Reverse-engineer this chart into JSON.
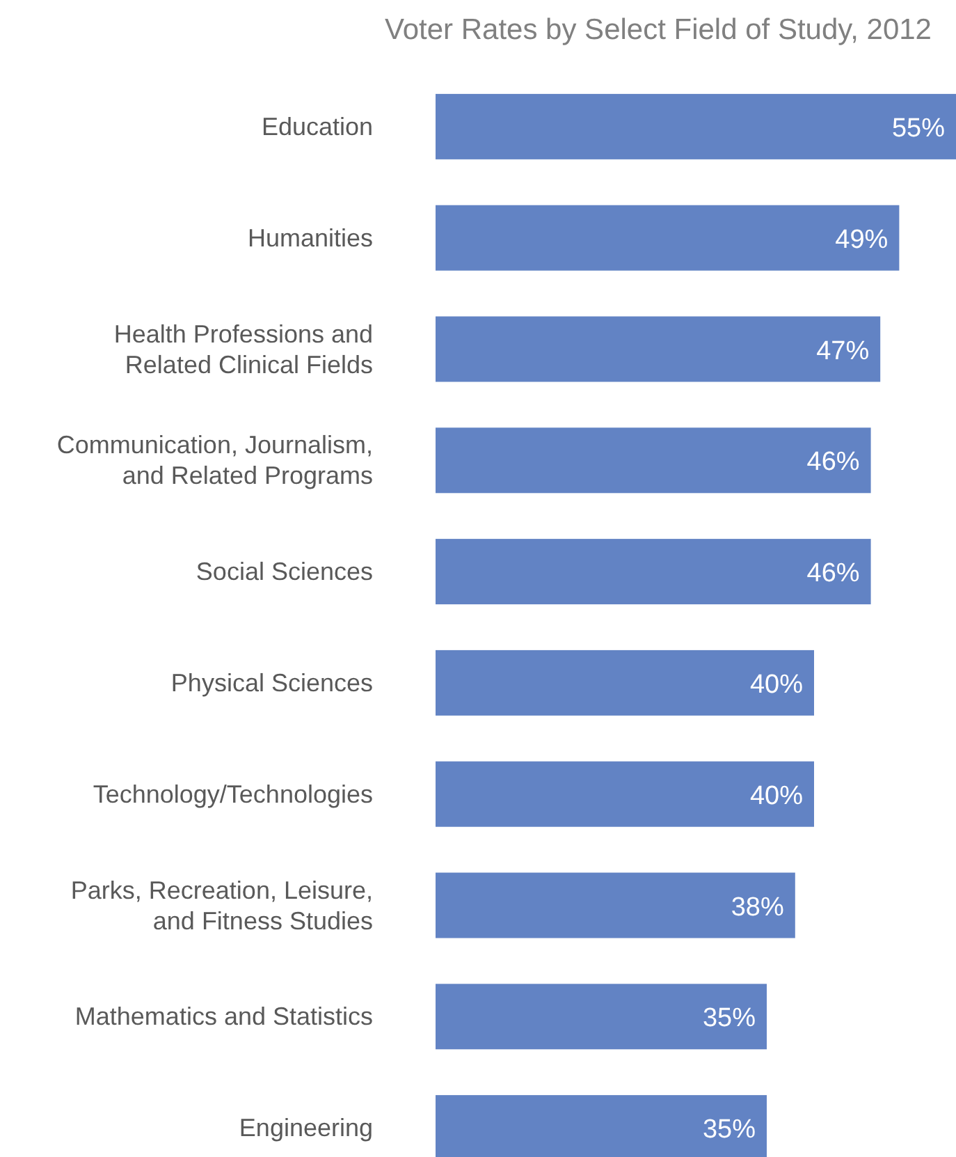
{
  "chart_data": {
    "type": "bar",
    "orientation": "horizontal",
    "title": "Voter Rates by Select Field of Study, 2012",
    "categories": [
      "Education",
      "Humanities",
      "Health Professions and Related Clinical Fields",
      "Communication, Journalism, and Related Programs",
      "Social Sciences",
      "Physical Sciences",
      "Technology/Technologies",
      "Parks, Recreation, Leisure, and Fitness Studies",
      "Mathematics and Statistics",
      "Engineering"
    ],
    "values": [
      55,
      49,
      47,
      46,
      46,
      40,
      40,
      38,
      35,
      35
    ],
    "value_labels": [
      "55%",
      "49%",
      "47%",
      "46%",
      "46%",
      "40%",
      "40%",
      "38%",
      "35%",
      "35%"
    ],
    "color": "#6283c4"
  }
}
